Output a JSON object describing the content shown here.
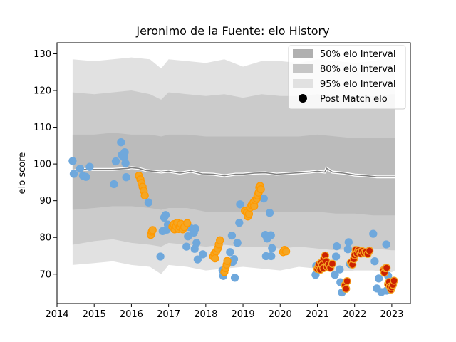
{
  "chart_data": {
    "type": "scatter",
    "title": "Jeronimo de la Fuente: elo History",
    "xlabel": "",
    "ylabel": "elo score",
    "xlim": [
      2014.0,
      2023.5
    ],
    "ylim": [
      62,
      133
    ],
    "xticks": [
      2014,
      2015,
      2016,
      2017,
      2018,
      2019,
      2020,
      2021,
      2022,
      2023
    ],
    "xtick_labels": [
      "2014",
      "2015",
      "2016",
      "2017",
      "2018",
      "2019",
      "2020",
      "2021",
      "2022",
      "2023"
    ],
    "yticks": [
      70,
      80,
      90,
      100,
      110,
      120,
      130
    ],
    "ytick_labels": [
      "70",
      "80",
      "90",
      "100",
      "110",
      "120",
      "130"
    ],
    "grid": false,
    "legend_position": "top-right",
    "legend": [
      {
        "key": "band50",
        "label": "50% elo Interval",
        "color": "#b0b0b0"
      },
      {
        "key": "band80",
        "label": "80% elo Interval",
        "color": "#c6c6c6"
      },
      {
        "key": "band95",
        "label": "95% elo Interval",
        "color": "#e1e1e1"
      },
      {
        "key": "points",
        "label": "Post Match elo",
        "color": "#000000"
      }
    ],
    "colors": {
      "band95": "#e1e1e1",
      "band80": "#cbcbcb",
      "band50": "#bbbbbb",
      "line_main": "#808080",
      "line_glow": "#ffffff",
      "point_blue": "#6fa8dc",
      "point_orange_fill": "#f5a623",
      "point_orange_edge": "#ff9900",
      "point_red_fill": "#cc2200",
      "point_red_edge": "#f5a623"
    },
    "bands": {
      "x": [
        2014.42,
        2015.0,
        2015.5,
        2016.0,
        2016.5,
        2016.8,
        2017.0,
        2017.5,
        2018.0,
        2018.5,
        2019.0,
        2019.5,
        2020.0,
        2020.5,
        2021.0,
        2021.5,
        2022.0,
        2022.5,
        2023.0,
        2023.08
      ],
      "upper95": [
        128.5,
        128.0,
        128.5,
        129.0,
        128.5,
        126.0,
        128.5,
        128.0,
        127.5,
        128.5,
        126.5,
        128.0,
        128.0,
        127.5,
        128.5,
        128.0,
        127.5,
        128.0,
        129.0,
        128.5
      ],
      "lower95": [
        72.5,
        73.0,
        73.5,
        72.5,
        72.0,
        70.0,
        72.5,
        72.0,
        71.0,
        71.5,
        72.0,
        71.5,
        71.0,
        72.0,
        71.5,
        70.5,
        71.0,
        71.0,
        70.5,
        71.0
      ],
      "upper80": [
        119.5,
        119.0,
        119.5,
        120.0,
        119.0,
        117.5,
        119.5,
        119.0,
        118.5,
        119.0,
        118.0,
        119.0,
        118.5,
        118.5,
        119.0,
        118.5,
        118.5,
        118.5,
        119.0,
        119.0
      ],
      "lower80": [
        78.0,
        79.0,
        79.5,
        78.5,
        78.0,
        77.5,
        78.5,
        78.0,
        77.5,
        78.0,
        77.5,
        77.5,
        77.0,
        77.5,
        77.0,
        76.5,
        77.0,
        77.0,
        76.5,
        76.5
      ],
      "upper50": [
        108.0,
        108.0,
        108.5,
        108.0,
        108.0,
        107.5,
        108.0,
        108.0,
        107.5,
        107.5,
        107.5,
        107.5,
        107.5,
        107.5,
        108.0,
        107.5,
        107.0,
        107.0,
        107.0,
        107.0
      ],
      "lower50": [
        87.5,
        88.0,
        88.5,
        88.5,
        88.0,
        87.5,
        88.0,
        88.0,
        87.0,
        87.0,
        87.0,
        87.0,
        87.0,
        87.0,
        87.0,
        86.5,
        86.5,
        86.0,
        86.0,
        86.0
      ]
    },
    "mean_line": {
      "x": [
        2014.42,
        2014.6,
        2015.0,
        2015.5,
        2015.9,
        2016.0,
        2016.2,
        2016.4,
        2016.6,
        2016.8,
        2017.0,
        2017.3,
        2017.6,
        2017.9,
        2018.2,
        2018.5,
        2018.8,
        2019.0,
        2019.3,
        2019.6,
        2019.9,
        2020.2,
        2020.5,
        2020.8,
        2021.0,
        2021.2,
        2021.25,
        2021.4,
        2021.7,
        2022.0,
        2022.3,
        2022.6,
        2022.9,
        2023.08
      ],
      "y": [
        98.0,
        98.5,
        98.5,
        98.5,
        98.8,
        99.0,
        98.8,
        98.2,
        98.0,
        97.8,
        98.0,
        97.5,
        98.0,
        97.3,
        97.2,
        96.8,
        97.2,
        97.2,
        97.5,
        97.6,
        97.2,
        97.4,
        97.6,
        97.8,
        98.0,
        97.8,
        98.8,
        97.8,
        97.5,
        97.0,
        96.8,
        96.5,
        96.5,
        96.5
      ]
    },
    "points_blue": [
      {
        "x": 2014.42,
        "y": 100.8
      },
      {
        "x": 2014.45,
        "y": 97.3
      },
      {
        "x": 2014.62,
        "y": 98.7
      },
      {
        "x": 2014.7,
        "y": 96.8
      },
      {
        "x": 2014.78,
        "y": 96.5
      },
      {
        "x": 2014.88,
        "y": 99.2
      },
      {
        "x": 2015.53,
        "y": 94.5
      },
      {
        "x": 2015.58,
        "y": 100.7
      },
      {
        "x": 2015.72,
        "y": 105.9
      },
      {
        "x": 2015.74,
        "y": 102.4
      },
      {
        "x": 2015.8,
        "y": 101.8
      },
      {
        "x": 2015.82,
        "y": 103.2
      },
      {
        "x": 2015.84,
        "y": 100.2
      },
      {
        "x": 2015.86,
        "y": 96.4
      },
      {
        "x": 2016.46,
        "y": 89.5
      },
      {
        "x": 2016.78,
        "y": 74.8
      },
      {
        "x": 2016.84,
        "y": 81.7
      },
      {
        "x": 2016.88,
        "y": 85.4
      },
      {
        "x": 2016.92,
        "y": 86.1
      },
      {
        "x": 2016.95,
        "y": 82.1
      },
      {
        "x": 2016.98,
        "y": 83.5
      },
      {
        "x": 2017.48,
        "y": 77.5
      },
      {
        "x": 2017.52,
        "y": 80.3
      },
      {
        "x": 2017.56,
        "y": 82.8
      },
      {
        "x": 2017.68,
        "y": 81.3
      },
      {
        "x": 2017.7,
        "y": 76.9
      },
      {
        "x": 2017.72,
        "y": 82.4
      },
      {
        "x": 2017.75,
        "y": 78.5
      },
      {
        "x": 2017.78,
        "y": 74.0
      },
      {
        "x": 2017.92,
        "y": 75.4
      },
      {
        "x": 2018.45,
        "y": 71.0
      },
      {
        "x": 2018.47,
        "y": 69.5
      },
      {
        "x": 2018.65,
        "y": 76.0
      },
      {
        "x": 2018.7,
        "y": 80.5
      },
      {
        "x": 2018.72,
        "y": 73.3
      },
      {
        "x": 2018.76,
        "y": 74.1
      },
      {
        "x": 2018.78,
        "y": 69.0
      },
      {
        "x": 2018.85,
        "y": 78.5
      },
      {
        "x": 2018.9,
        "y": 84.0
      },
      {
        "x": 2018.92,
        "y": 89.0
      },
      {
        "x": 2019.56,
        "y": 90.6
      },
      {
        "x": 2019.6,
        "y": 80.7
      },
      {
        "x": 2019.62,
        "y": 74.9
      },
      {
        "x": 2019.65,
        "y": 79.7
      },
      {
        "x": 2019.72,
        "y": 86.7
      },
      {
        "x": 2019.75,
        "y": 80.6
      },
      {
        "x": 2019.76,
        "y": 74.9
      },
      {
        "x": 2019.78,
        "y": 77.1
      },
      {
        "x": 2020.95,
        "y": 69.8
      },
      {
        "x": 2020.97,
        "y": 72.2
      },
      {
        "x": 2021.47,
        "y": 69.8
      },
      {
        "x": 2021.5,
        "y": 74.8
      },
      {
        "x": 2021.52,
        "y": 77.6
      },
      {
        "x": 2021.6,
        "y": 71.3
      },
      {
        "x": 2021.62,
        "y": 67.8
      },
      {
        "x": 2021.66,
        "y": 65.0
      },
      {
        "x": 2021.82,
        "y": 76.8
      },
      {
        "x": 2021.84,
        "y": 78.7
      },
      {
        "x": 2021.88,
        "y": 72.7
      },
      {
        "x": 2022.5,
        "y": 81.0
      },
      {
        "x": 2022.54,
        "y": 73.5
      },
      {
        "x": 2022.6,
        "y": 66.1
      },
      {
        "x": 2022.65,
        "y": 68.8
      },
      {
        "x": 2022.72,
        "y": 65.1
      },
      {
        "x": 2022.85,
        "y": 78.1
      },
      {
        "x": 2022.86,
        "y": 65.5
      },
      {
        "x": 2022.9,
        "y": 69.5
      }
    ],
    "points_orange": [
      {
        "x": 2016.2,
        "y": 96.8
      },
      {
        "x": 2016.24,
        "y": 95.8
      },
      {
        "x": 2016.27,
        "y": 94.8
      },
      {
        "x": 2016.3,
        "y": 93.8
      },
      {
        "x": 2016.33,
        "y": 92.7
      },
      {
        "x": 2016.36,
        "y": 91.4
      },
      {
        "x": 2016.52,
        "y": 80.7
      },
      {
        "x": 2016.55,
        "y": 81.6
      },
      {
        "x": 2016.57,
        "y": 82.0
      },
      {
        "x": 2017.1,
        "y": 82.9
      },
      {
        "x": 2017.14,
        "y": 83.6
      },
      {
        "x": 2017.16,
        "y": 82.2
      },
      {
        "x": 2017.2,
        "y": 83.0
      },
      {
        "x": 2017.23,
        "y": 84.0
      },
      {
        "x": 2017.27,
        "y": 82.3
      },
      {
        "x": 2017.3,
        "y": 82.9
      },
      {
        "x": 2017.33,
        "y": 83.7
      },
      {
        "x": 2017.38,
        "y": 82.2
      },
      {
        "x": 2017.42,
        "y": 82.8
      },
      {
        "x": 2017.5,
        "y": 83.9
      },
      {
        "x": 2018.2,
        "y": 74.8
      },
      {
        "x": 2018.23,
        "y": 75.6
      },
      {
        "x": 2018.25,
        "y": 74.3
      },
      {
        "x": 2018.28,
        "y": 76.2
      },
      {
        "x": 2018.32,
        "y": 77.0
      },
      {
        "x": 2018.35,
        "y": 78.1
      },
      {
        "x": 2018.38,
        "y": 79.2
      },
      {
        "x": 2018.5,
        "y": 70.6
      },
      {
        "x": 2018.53,
        "y": 71.6
      },
      {
        "x": 2018.56,
        "y": 72.6
      },
      {
        "x": 2018.58,
        "y": 73.6
      },
      {
        "x": 2019.05,
        "y": 87.2
      },
      {
        "x": 2019.1,
        "y": 86.7
      },
      {
        "x": 2019.13,
        "y": 85.7
      },
      {
        "x": 2019.16,
        "y": 86.4
      },
      {
        "x": 2019.19,
        "y": 88.1
      },
      {
        "x": 2019.23,
        "y": 88.8
      },
      {
        "x": 2019.28,
        "y": 89.5
      },
      {
        "x": 2019.3,
        "y": 88.5
      },
      {
        "x": 2019.33,
        "y": 90.1
      },
      {
        "x": 2019.37,
        "y": 90.6
      },
      {
        "x": 2019.39,
        "y": 91.4
      },
      {
        "x": 2019.42,
        "y": 92.2
      },
      {
        "x": 2019.44,
        "y": 93.6
      },
      {
        "x": 2019.46,
        "y": 94.0
      },
      {
        "x": 2019.48,
        "y": 93.1
      },
      {
        "x": 2020.08,
        "y": 76.0
      },
      {
        "x": 2020.12,
        "y": 76.6
      },
      {
        "x": 2020.16,
        "y": 76.2
      }
    ],
    "points_red": [
      {
        "x": 2021.0,
        "y": 71.4
      },
      {
        "x": 2021.03,
        "y": 72.0
      },
      {
        "x": 2021.05,
        "y": 72.7
      },
      {
        "x": 2021.08,
        "y": 71.2
      },
      {
        "x": 2021.1,
        "y": 73.1
      },
      {
        "x": 2021.13,
        "y": 72.5
      },
      {
        "x": 2021.16,
        "y": 71.6
      },
      {
        "x": 2021.18,
        "y": 74.3
      },
      {
        "x": 2021.21,
        "y": 75.1
      },
      {
        "x": 2021.24,
        "y": 73.5
      },
      {
        "x": 2021.26,
        "y": 72.0
      },
      {
        "x": 2021.3,
        "y": 72.6
      },
      {
        "x": 2021.35,
        "y": 71.7
      },
      {
        "x": 2021.4,
        "y": 72.8
      },
      {
        "x": 2021.74,
        "y": 67.0
      },
      {
        "x": 2021.77,
        "y": 66.0
      },
      {
        "x": 2021.8,
        "y": 68.1
      },
      {
        "x": 2021.9,
        "y": 73.2
      },
      {
        "x": 2021.94,
        "y": 72.6
      },
      {
        "x": 2021.98,
        "y": 74.1
      },
      {
        "x": 2022.0,
        "y": 75.2
      },
      {
        "x": 2022.03,
        "y": 76.6
      },
      {
        "x": 2022.06,
        "y": 75.7
      },
      {
        "x": 2022.1,
        "y": 76.5
      },
      {
        "x": 2022.13,
        "y": 76.0
      },
      {
        "x": 2022.17,
        "y": 75.6
      },
      {
        "x": 2022.2,
        "y": 76.3
      },
      {
        "x": 2022.25,
        "y": 75.8
      },
      {
        "x": 2022.3,
        "y": 76.0
      },
      {
        "x": 2022.35,
        "y": 75.5
      },
      {
        "x": 2022.4,
        "y": 76.4
      },
      {
        "x": 2022.78,
        "y": 71.1
      },
      {
        "x": 2022.8,
        "y": 70.4
      },
      {
        "x": 2022.83,
        "y": 71.6
      },
      {
        "x": 2022.86,
        "y": 71.7
      },
      {
        "x": 2022.9,
        "y": 67.3
      },
      {
        "x": 2022.93,
        "y": 67.9
      },
      {
        "x": 2022.95,
        "y": 66.6
      },
      {
        "x": 2022.98,
        "y": 65.8
      },
      {
        "x": 2023.0,
        "y": 66.4
      },
      {
        "x": 2023.03,
        "y": 67.1
      },
      {
        "x": 2023.06,
        "y": 68.2
      }
    ]
  }
}
